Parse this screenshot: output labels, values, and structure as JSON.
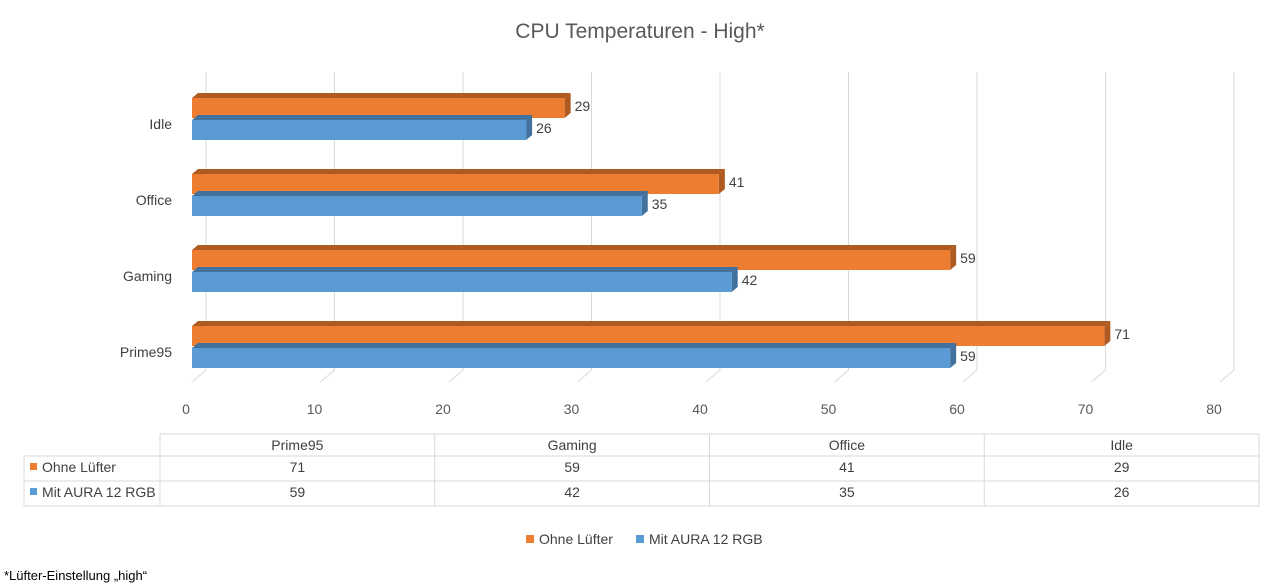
{
  "chart_data": {
    "type": "bar",
    "orientation": "horizontal",
    "style": "3d",
    "title": "CPU Temperaturen - High*",
    "categories": [
      "Idle",
      "Office",
      "Gaming",
      "Prime95"
    ],
    "series": [
      {
        "name": "Ohne Lüfter",
        "values": [
          29,
          41,
          59,
          71
        ],
        "color": "#ED7D31",
        "dark": "#AE5A21"
      },
      {
        "name": "Mit AURA 12 RGB",
        "values": [
          26,
          35,
          42,
          59
        ],
        "color": "#5B9BD5",
        "dark": "#41719C"
      }
    ],
    "xlim": [
      0,
      80
    ],
    "xticks": [
      0,
      10,
      20,
      30,
      40,
      50,
      60,
      70,
      80
    ],
    "grid": true,
    "legend_position": "bottom",
    "data_table": {
      "columns": [
        "Prime95",
        "Gaming",
        "Office",
        "Idle"
      ],
      "rows": [
        {
          "name": "Ohne Lüfter",
          "values": [
            "71",
            "59",
            "41",
            "29"
          ]
        },
        {
          "name": "Mit AURA 12 RGB",
          "values": [
            "59",
            "42",
            "35",
            "26"
          ]
        }
      ]
    }
  },
  "footnote": "*Lüfter-Einstellung „high“"
}
